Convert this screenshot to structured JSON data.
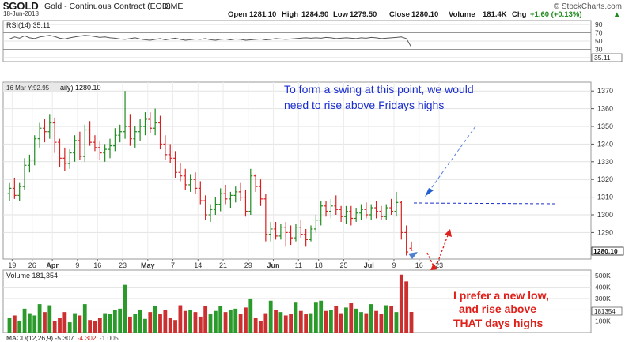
{
  "header": {
    "symbol": "$GOLD",
    "name": "Gold - Continuous Contract (EOD)",
    "exchange": "CME",
    "brand": "© StockCharts.com",
    "date": "18-Jun-2018",
    "open_label": "Open",
    "open": "1281.10",
    "high_label": "High",
    "high": "1284.90",
    "low_label": "Low",
    "low": "1279.50",
    "close_label": "Close",
    "close": "1280.10",
    "volume_label": "Volume",
    "volume": "181.4K",
    "chg_label": "Chg",
    "chg": "+1.60 (+0.13%)",
    "chg_arrow": "▲"
  },
  "rsi": {
    "label": "RSI(14) 35.11",
    "ticks": [
      "90",
      "70",
      "50",
      "30",
      "10"
    ],
    "current": "35.11",
    "values": [
      55,
      60,
      57,
      63,
      58,
      56,
      60,
      62,
      64,
      61,
      57,
      55,
      58,
      60,
      62,
      64,
      63,
      61,
      59,
      60,
      58,
      57,
      55,
      54,
      56,
      58,
      55,
      53,
      52,
      54,
      56,
      53,
      55,
      57,
      54,
      52,
      53,
      55,
      54,
      56,
      53,
      52,
      54,
      55,
      53,
      55,
      54,
      52,
      53,
      54,
      55,
      53,
      54,
      56,
      55,
      54,
      55,
      56,
      57,
      58,
      57,
      58,
      57,
      59,
      58,
      56,
      57,
      58,
      57,
      56,
      58,
      57,
      59,
      58,
      56,
      57,
      58,
      59,
      60,
      56,
      35
    ]
  },
  "price_panel": {
    "legend": "16 Mar Y:92.95",
    "legend2": "aily) 1280.10",
    "yticks": [
      "1370",
      "1360",
      "1350",
      "1340",
      "1330",
      "1320",
      "1310",
      "1300",
      "1290"
    ],
    "last_label": "1280.10",
    "xticks": [
      "19",
      "26",
      "Apr",
      "9",
      "16",
      "23",
      "May",
      "7",
      "14",
      "21",
      "29",
      "Jun",
      "11",
      "18",
      "25",
      "Jul",
      "9",
      "16",
      "23"
    ]
  },
  "volume_panel": {
    "label": "Volume 181,354",
    "yticks": [
      "500K",
      "400K",
      "300K",
      "200K",
      "100K"
    ],
    "current": "181354"
  },
  "macd": {
    "label_prefix": "MACD(12,26,9) ",
    "v1": "-5.307",
    "v2": "-4.302",
    "v3": "-1.005"
  },
  "annotations": {
    "top": "To form a swing at this point, we would need to rise above Fridays highs",
    "bottom": "I prefer a new low, and rise above THAT days highs"
  },
  "colors": {
    "up": "#1f8a1f",
    "down": "#d62020",
    "note_blue": "#1a2ecf",
    "note_red": "#e0201a",
    "vol_red": "#cc2f2f",
    "vol_green": "#2a9a2a"
  },
  "chart_data": {
    "type": "bar",
    "title": "$GOLD Gold - Continuous Contract (EOD)",
    "ylim": [
      1275,
      1375
    ],
    "volume_ylim": [
      0,
      550
    ],
    "rsi_ylim": [
      0,
      100
    ],
    "volume_unit": "K",
    "ohlc": [
      [
        1312,
        1318,
        1308,
        1315
      ],
      [
        1315,
        1321,
        1309,
        1311
      ],
      [
        1311,
        1318,
        1308,
        1316
      ],
      [
        1316,
        1332,
        1314,
        1328
      ],
      [
        1328,
        1334,
        1324,
        1331
      ],
      [
        1331,
        1345,
        1328,
        1343
      ],
      [
        1343,
        1352,
        1338,
        1349
      ],
      [
        1349,
        1354,
        1341,
        1347
      ],
      [
        1347,
        1357,
        1343,
        1352
      ],
      [
        1352,
        1355,
        1335,
        1341
      ],
      [
        1341,
        1343,
        1327,
        1332
      ],
      [
        1332,
        1338,
        1325,
        1329
      ],
      [
        1329,
        1337,
        1326,
        1335
      ],
      [
        1335,
        1345,
        1330,
        1342
      ],
      [
        1342,
        1347,
        1331,
        1333
      ],
      [
        1333,
        1351,
        1330,
        1348
      ],
      [
        1348,
        1353,
        1339,
        1341
      ],
      [
        1341,
        1345,
        1336,
        1338
      ],
      [
        1338,
        1342,
        1331,
        1335
      ],
      [
        1335,
        1340,
        1330,
        1337
      ],
      [
        1337,
        1343,
        1332,
        1339
      ],
      [
        1339,
        1349,
        1336,
        1345
      ],
      [
        1345,
        1351,
        1341,
        1347
      ],
      [
        1347,
        1370,
        1343,
        1350
      ],
      [
        1350,
        1357,
        1339,
        1343
      ],
      [
        1343,
        1350,
        1338,
        1347
      ],
      [
        1347,
        1354,
        1342,
        1350
      ],
      [
        1350,
        1358,
        1345,
        1354
      ],
      [
        1354,
        1358,
        1346,
        1349
      ],
      [
        1349,
        1360,
        1345,
        1352
      ],
      [
        1352,
        1356,
        1337,
        1340
      ],
      [
        1340,
        1345,
        1331,
        1334
      ],
      [
        1334,
        1340,
        1329,
        1332
      ],
      [
        1332,
        1336,
        1321,
        1324
      ],
      [
        1324,
        1329,
        1319,
        1322
      ],
      [
        1322,
        1326,
        1314,
        1317
      ],
      [
        1317,
        1323,
        1313,
        1320
      ],
      [
        1320,
        1324,
        1312,
        1315
      ],
      [
        1315,
        1319,
        1306,
        1308
      ],
      [
        1308,
        1311,
        1297,
        1300
      ],
      [
        1300,
        1306,
        1296,
        1303
      ],
      [
        1303,
        1310,
        1300,
        1306
      ],
      [
        1306,
        1315,
        1302,
        1312
      ],
      [
        1312,
        1317,
        1306,
        1309
      ],
      [
        1309,
        1313,
        1304,
        1311
      ],
      [
        1311,
        1316,
        1307,
        1313
      ],
      [
        1313,
        1318,
        1308,
        1310
      ],
      [
        1310,
        1314,
        1299,
        1302
      ],
      [
        1302,
        1326,
        1300,
        1322
      ],
      [
        1322,
        1323,
        1313,
        1316
      ],
      [
        1316,
        1320,
        1305,
        1309
      ],
      [
        1309,
        1312,
        1285,
        1289
      ],
      [
        1289,
        1296,
        1285,
        1292
      ],
      [
        1292,
        1296,
        1286,
        1288
      ],
      [
        1288,
        1295,
        1286,
        1293
      ],
      [
        1293,
        1296,
        1282,
        1290
      ],
      [
        1290,
        1294,
        1283,
        1287
      ],
      [
        1287,
        1295,
        1285,
        1293
      ],
      [
        1293,
        1297,
        1287,
        1289
      ],
      [
        1289,
        1292,
        1282,
        1286
      ],
      [
        1286,
        1294,
        1285,
        1292
      ],
      [
        1292,
        1300,
        1290,
        1297
      ],
      [
        1297,
        1308,
        1294,
        1305
      ],
      [
        1305,
        1308,
        1299,
        1302
      ],
      [
        1302,
        1309,
        1298,
        1305
      ],
      [
        1305,
        1311,
        1300,
        1303
      ],
      [
        1303,
        1305,
        1296,
        1299
      ],
      [
        1299,
        1305,
        1295,
        1302
      ],
      [
        1302,
        1305,
        1294,
        1298
      ],
      [
        1298,
        1304,
        1296,
        1301
      ],
      [
        1301,
        1306,
        1297,
        1303
      ],
      [
        1303,
        1307,
        1298,
        1300
      ],
      [
        1300,
        1306,
        1297,
        1304
      ],
      [
        1304,
        1308,
        1298,
        1302
      ],
      [
        1302,
        1305,
        1297,
        1299
      ],
      [
        1299,
        1306,
        1297,
        1304
      ],
      [
        1304,
        1309,
        1300,
        1302
      ],
      [
        1302,
        1313,
        1299,
        1307
      ],
      [
        1307,
        1308,
        1286,
        1290
      ],
      [
        1290,
        1294,
        1277,
        1279
      ],
      [
        1281.1,
        1284.9,
        1279.5,
        1280.1
      ]
    ],
    "volume": [
      130,
      150,
      100,
      210,
      170,
      150,
      250,
      180,
      240,
      100,
      130,
      180,
      90,
      170,
      150,
      250,
      110,
      100,
      130,
      170,
      160,
      200,
      210,
      420,
      140,
      160,
      200,
      120,
      180,
      230,
      160,
      200,
      130,
      110,
      240,
      190,
      200,
      180,
      140,
      230,
      160,
      190,
      230,
      180,
      200,
      210,
      160,
      220,
      300,
      130,
      100,
      170,
      280,
      200,
      180,
      150,
      160,
      270,
      190,
      160,
      170,
      270,
      280,
      190,
      200,
      230,
      170,
      220,
      260,
      210,
      180,
      170,
      250,
      190,
      160,
      240,
      230,
      180,
      510,
      450,
      181
    ]
  }
}
